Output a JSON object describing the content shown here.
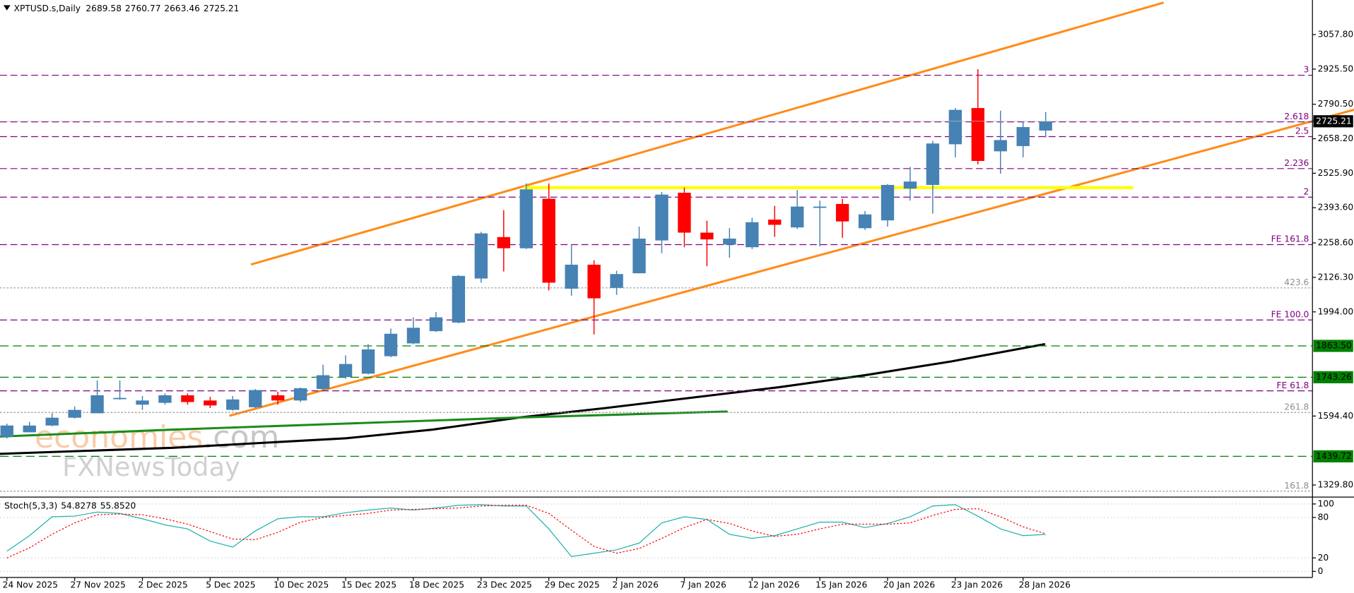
{
  "chart_data": {
    "type": "candlestick",
    "title": "XPTUSD.s,Daily",
    "categories": [
      "24 Nov 2025",
      null,
      null,
      "27 Nov 2025",
      null,
      null,
      "2 Dec 2025",
      null,
      null,
      "5 Dec 2025",
      null,
      null,
      "10 Dec 2025",
      null,
      null,
      "15 Dec 2025",
      null,
      null,
      "18 Dec 2025",
      null,
      null,
      "23 Dec 2025",
      null,
      null,
      "29 Dec 2025",
      null,
      null,
      "2 Jan 2026",
      null,
      null,
      "7 Jan 2026",
      null,
      null,
      "12 Jan 2026",
      null,
      null,
      "15 Jan 2026",
      null,
      null,
      "20 Jan 2026",
      null,
      null,
      "23 Jan 2026",
      null,
      null,
      "28 Jan 2026",
      null
    ],
    "open": [
      1515,
      1532,
      1558,
      1588,
      1605,
      1660,
      1638,
      1645,
      1674,
      1654,
      1618,
      1628,
      1674,
      1654,
      1698,
      1744,
      1757,
      1824,
      1873,
      1920,
      1953,
      2122,
      2281,
      2238,
      2428,
      2083,
      2175,
      2086,
      2142,
      2268,
      2451,
      2298,
      2252,
      2242,
      2348,
      2318,
      2394,
      2408,
      2315,
      2345,
      2467,
      2481,
      2637,
      2776,
      2610,
      2630,
      2689.58
    ],
    "high": [
      1565,
      1572,
      1605,
      1631,
      1731,
      1731,
      1671,
      1681,
      1681,
      1668,
      1671,
      1698,
      1688,
      1704,
      1791,
      1827,
      1870,
      1930,
      1973,
      1993,
      2135,
      2301,
      2384,
      2487,
      2487,
      2252,
      2192,
      2152,
      2321,
      2454,
      2471,
      2344,
      2315,
      2355,
      2401,
      2461,
      2421,
      2428,
      2381,
      2484,
      2550,
      2650,
      2776,
      2925,
      2766,
      2726,
      2760.77
    ],
    "low": [
      1508,
      1532,
      1555,
      1585,
      1605,
      1657,
      1618,
      1638,
      1638,
      1625,
      1615,
      1625,
      1638,
      1648,
      1691,
      1737,
      1754,
      1820,
      1870,
      1917,
      1950,
      2106,
      2149,
      2235,
      2076,
      2056,
      1907,
      2059,
      2142,
      2219,
      2242,
      2169,
      2202,
      2235,
      2282,
      2312,
      2245,
      2278,
      2308,
      2321,
      2421,
      2371,
      2587,
      2560,
      2524,
      2587,
      2663.46
    ],
    "close": [
      1558,
      1558,
      1588,
      1618,
      1674,
      1664,
      1654,
      1674,
      1648,
      1635,
      1658,
      1694,
      1654,
      1701,
      1751,
      1794,
      1850,
      1910,
      1933,
      1973,
      2132,
      2295,
      2238,
      2464,
      2106,
      2175,
      2046,
      2139,
      2275,
      2444,
      2298,
      2272,
      2275,
      2338,
      2328,
      2398,
      2398,
      2341,
      2368,
      2481,
      2494,
      2640,
      2769,
      2573,
      2653,
      2703,
      2725.21
    ],
    "up_color": "#4682b4",
    "down_color": "#ff0000",
    "ylim": [
      1293.5,
      3190.5
    ],
    "yticks": [
      {
        "value": 3057.8,
        "label": "3057.80"
      },
      {
        "value": 2925.5,
        "label": "2925.50"
      },
      {
        "value": 2790.5,
        "label": "2790.50"
      },
      {
        "value": 2658.2,
        "label": "2658.20"
      },
      {
        "value": 2525.9,
        "label": "2525.90"
      },
      {
        "value": 2393.6,
        "label": "2393.60"
      },
      {
        "value": 2258.6,
        "label": "2258.60"
      },
      {
        "value": 2126.3,
        "label": "2126.30"
      },
      {
        "value": 1994,
        "label": "1994.00"
      },
      {
        "value": 1594.4,
        "label": "1594.40"
      },
      {
        "value": 1329.8,
        "label": "1329.80"
      }
    ],
    "levels": [
      {
        "name": "3",
        "value": 2901.9,
        "color": "#800080"
      },
      {
        "name": "2.618",
        "value": 2722.8,
        "color": "#800080"
      },
      {
        "name": "2.5",
        "value": 2666.4,
        "color": "#800080"
      },
      {
        "name": "2.236",
        "value": 2543.7,
        "color": "#800080"
      },
      {
        "name": "2",
        "value": 2434.2,
        "color": "#800080"
      },
      {
        "name": "FE 161.8",
        "value": 2252,
        "color": "#800080"
      },
      {
        "name": "423.6",
        "value": 2086,
        "color": "#909090"
      },
      {
        "name": "FE 100.0",
        "value": 1963,
        "color": "#800080"
      },
      {
        "name": "FE 61.8",
        "value": 1691,
        "color": "#800080"
      },
      {
        "name": "261.8",
        "value": 1608,
        "color": "#909090"
      },
      {
        "name": "161.8",
        "value": 1306,
        "color": "#909090"
      }
    ],
    "price_levels": [
      {
        "value": 1863.5,
        "label": "1863.50"
      },
      {
        "value": 1743.26,
        "label": "1743.26"
      },
      {
        "value": 1439.72,
        "label": "1439.72"
      }
    ],
    "price_level_color": "#008000",
    "watermark": [
      "economies",
      ".com",
      "FXNewsToday"
    ],
    "indicator": {
      "type": "line",
      "title": "Stoch(5,3,3)",
      "ylim": [
        0,
        100
      ],
      "yticks": [
        0,
        20,
        80,
        100
      ],
      "series": [
        {
          "color": "#20b2aa",
          "values": [
            30,
            53,
            81,
            82,
            88,
            86,
            78,
            69,
            63,
            45,
            36,
            60,
            78,
            81,
            81,
            87,
            91,
            94,
            91,
            94,
            98,
            99,
            97,
            97,
            63,
            22,
            27,
            32,
            42,
            72,
            81,
            77,
            55,
            49,
            53,
            63,
            73,
            73,
            65,
            71,
            81,
            97,
            99,
            82,
            63,
            53,
            54.8278
          ]
        },
        {
          "color": "#ff0000",
          "dashed": true,
          "values": [
            20,
            35,
            55,
            72,
            84,
            85,
            84,
            78,
            70,
            59,
            48,
            47,
            58,
            73,
            80,
            83,
            86,
            91,
            92,
            93,
            94,
            97,
            98,
            98,
            86,
            61,
            37,
            27,
            34,
            49,
            65,
            77,
            71,
            60,
            52,
            55,
            63,
            70,
            70,
            70,
            72,
            83,
            92,
            93,
            81,
            66,
            55.852
          ],
          "value_labels": [
            null,
            null,
            null,
            null,
            null,
            null,
            null,
            null,
            null,
            null,
            null,
            null,
            null,
            null,
            null,
            null,
            null,
            null,
            null,
            null,
            null,
            null,
            null,
            null,
            null,
            null,
            null,
            null,
            null,
            null,
            null,
            null,
            null,
            null,
            null,
            null,
            null,
            null,
            null,
            null,
            null,
            null,
            null,
            null,
            null,
            null,
            "55.8520"
          ]
        }
      ]
    }
  }
}
